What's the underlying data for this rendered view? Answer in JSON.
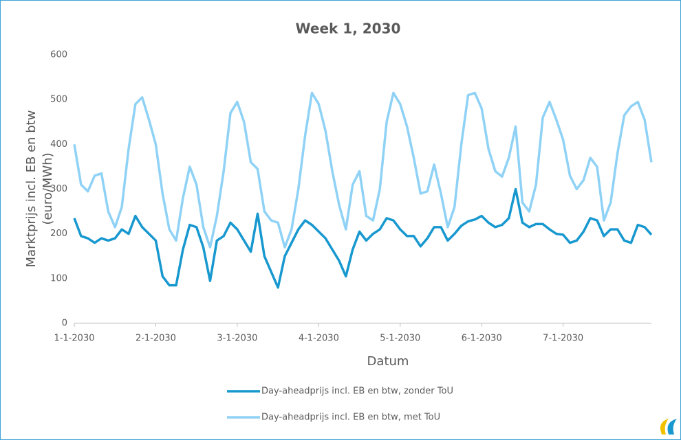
{
  "chart_data": {
    "type": "line",
    "title": "Week 1, 2030",
    "y_label": [
      "Marktprijs incl. EB en btw",
      "(euro/MWh)"
    ],
    "x_label": "Datum",
    "x": [
      0,
      2,
      4,
      6,
      8,
      10,
      12,
      14,
      16,
      18,
      20,
      22,
      24,
      26,
      28,
      30,
      32,
      34,
      36,
      38,
      40,
      42,
      44,
      46,
      48,
      50,
      52,
      54,
      56,
      58,
      60,
      62,
      64,
      66,
      68,
      70,
      72,
      74,
      76,
      78,
      80,
      82,
      84,
      86,
      88,
      90,
      92,
      94,
      96,
      98,
      100,
      102,
      104,
      106,
      108,
      110,
      112,
      114,
      116,
      118,
      120,
      122,
      124,
      126,
      128,
      130,
      132,
      134,
      136,
      138,
      140,
      142,
      144,
      146,
      148,
      150,
      152,
      154,
      156,
      158,
      160,
      162,
      164,
      166,
      168,
      170
    ],
    "xlim": [
      0,
      170
    ],
    "xticks": [
      {
        "value": 0,
        "label": "1-1-2030"
      },
      {
        "value": 24,
        "label": "2-1-2030"
      },
      {
        "value": 48,
        "label": "3-1-2030"
      },
      {
        "value": 72,
        "label": "4-1-2030"
      },
      {
        "value": 96,
        "label": "5-1-2030"
      },
      {
        "value": 120,
        "label": "6-1-2030"
      },
      {
        "value": 144,
        "label": "7-1-2030"
      }
    ],
    "ylim": [
      0,
      600
    ],
    "yticks": [
      0,
      100,
      200,
      300,
      400,
      500,
      600
    ],
    "grid": false,
    "legend": "bottom",
    "series": [
      {
        "name": "Day-aheadprijs incl. EB en btw, zonder ToU",
        "color": "#1798cf",
        "values": [
          235,
          195,
          190,
          180,
          190,
          185,
          190,
          210,
          200,
          240,
          215,
          200,
          185,
          105,
          85,
          85,
          165,
          220,
          215,
          170,
          95,
          185,
          195,
          225,
          210,
          185,
          160,
          245,
          150,
          115,
          80,
          150,
          180,
          210,
          230,
          220,
          205,
          190,
          165,
          140,
          105,
          165,
          205,
          185,
          200,
          210,
          235,
          230,
          210,
          195,
          195,
          172,
          190,
          215,
          215,
          185,
          200,
          218,
          228,
          232,
          240,
          225,
          215,
          220,
          235,
          300,
          225,
          215,
          222,
          222,
          210,
          200,
          198,
          180,
          185,
          205,
          235,
          230,
          195,
          210,
          210,
          185,
          180,
          220,
          215,
          198
        ]
      },
      {
        "name": "Day-aheadprijs incl. EB en btw, met ToU",
        "color": "#8fd2f6",
        "values": [
          400,
          310,
          295,
          330,
          335,
          250,
          215,
          260,
          390,
          490,
          505,
          455,
          400,
          290,
          210,
          185,
          280,
          350,
          310,
          215,
          170,
          240,
          340,
          470,
          495,
          450,
          360,
          345,
          250,
          230,
          225,
          170,
          210,
          300,
          420,
          515,
          490,
          430,
          340,
          265,
          210,
          310,
          340,
          240,
          230,
          300,
          450,
          515,
          490,
          440,
          370,
          290,
          295,
          355,
          290,
          215,
          260,
          400,
          510,
          515,
          480,
          390,
          340,
          328,
          370,
          440,
          270,
          250,
          310,
          460,
          495,
          455,
          410,
          330,
          300,
          320,
          370,
          350,
          230,
          270,
          380,
          465,
          485,
          495,
          455,
          360
        ]
      }
    ]
  }
}
